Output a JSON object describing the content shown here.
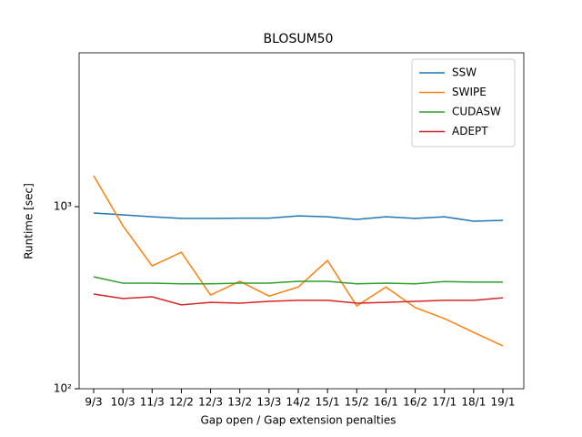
{
  "chart_data": {
    "type": "line",
    "title": "BLOSUM50",
    "x_label": "Gap open / Gap extension penalties",
    "y_label": "Runtime [sec]",
    "log_scale": true,
    "categories": [
      "9/3",
      "10/3",
      "11/3",
      "12/2",
      "12/3",
      "13/2",
      "13/3",
      "14/2",
      "15/1",
      "15/2",
      "16/1",
      "16/2",
      "17/1",
      "18/1",
      "19/1"
    ],
    "series": [
      {
        "name": "SSW",
        "color": "#1f77b4",
        "values": [
          923,
          902,
          880,
          862,
          862,
          865,
          865,
          890,
          880,
          851,
          880,
          862,
          880,
          832,
          842
        ]
      },
      {
        "name": "SWIPE",
        "color": "#ff7f0e",
        "values": [
          1480,
          786,
          473,
          562,
          327,
          389,
          323,
          362,
          506,
          285,
          362,
          279,
          243,
          204,
          172
        ]
      },
      {
        "name": "CUDASW",
        "color": "#2ca02c",
        "values": [
          412,
          380,
          380,
          377,
          377,
          380,
          380,
          389,
          389,
          377,
          380,
          377,
          388,
          385,
          385
        ]
      },
      {
        "name": "ADEPT",
        "color": "#d62728",
        "values": [
          331,
          313,
          320,
          289,
          298,
          295,
          302,
          306,
          306,
          295,
          298,
          302,
          306,
          306,
          316
        ]
      }
    ],
    "ylim": [
      100,
      7000
    ],
    "yticks": [
      {
        "value": 100,
        "label": "10²"
      },
      {
        "value": 1000,
        "label": "10³"
      }
    ],
    "legend": "upper right"
  }
}
